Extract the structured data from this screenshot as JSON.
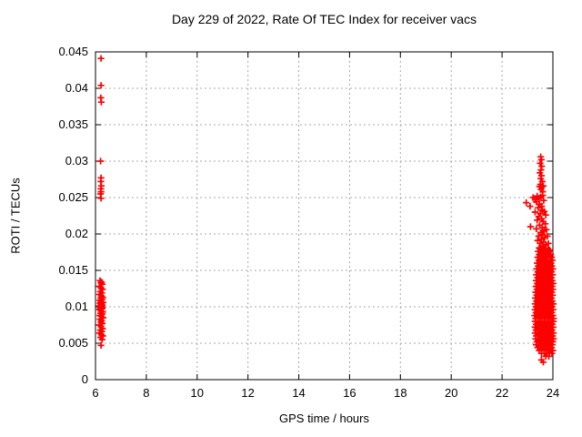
{
  "chart_data": {
    "type": "scatter",
    "title": "Day 229 of 2022, Rate Of TEC Index for receiver vacs",
    "xlabel": "GPS time / hours",
    "ylabel": "ROTI / TECUs",
    "xlim": [
      6,
      24
    ],
    "ylim": [
      0,
      0.045
    ],
    "x_ticks": [
      6,
      8,
      10,
      12,
      14,
      16,
      18,
      20,
      22,
      24
    ],
    "x_tick_labels": [
      "6",
      "8",
      "10",
      "12",
      "14",
      "16",
      "18",
      "20",
      "22",
      "24"
    ],
    "y_ticks": [
      0,
      0.005,
      0.01,
      0.015,
      0.02,
      0.025,
      0.03,
      0.035,
      0.04,
      0.045
    ],
    "y_tick_labels": [
      "0",
      "0.005",
      "0.01",
      "0.015",
      "0.02",
      "0.025",
      "0.03",
      "0.035",
      "0.04",
      "0.045"
    ],
    "grid": true,
    "legend": "none",
    "styles": {
      "marker": "plus",
      "marker_color": "#ff0000",
      "grid_color": "#a8a8a8",
      "axis_color": "#000000",
      "text_color": "#000000",
      "background": "#ffffff"
    },
    "series": [
      {
        "name": "vacs",
        "color": "#ff0000",
        "marker": "plus",
        "points": [
          [
            6.22,
            0.0441
          ],
          [
            6.22,
            0.0404
          ],
          [
            6.21,
            0.0387
          ],
          [
            6.23,
            0.0381
          ],
          [
            6.2,
            0.03
          ],
          [
            6.22,
            0.0277
          ],
          [
            6.21,
            0.0272
          ],
          [
            6.23,
            0.0266
          ],
          [
            6.21,
            0.0262
          ],
          [
            6.22,
            0.0258
          ],
          [
            6.2,
            0.0255
          ],
          [
            6.22,
            0.0249
          ],
          [
            6.18,
            0.0136
          ],
          [
            6.24,
            0.0134
          ],
          [
            6.21,
            0.0133
          ],
          [
            6.27,
            0.0131
          ],
          [
            6.15,
            0.0128
          ],
          [
            6.22,
            0.0126
          ],
          [
            6.28,
            0.0124
          ],
          [
            6.19,
            0.0121
          ],
          [
            6.25,
            0.0119
          ],
          [
            6.16,
            0.0117
          ],
          [
            6.23,
            0.0115
          ],
          [
            6.29,
            0.0113
          ],
          [
            6.2,
            0.0112
          ],
          [
            6.26,
            0.011
          ],
          [
            6.17,
            0.0109
          ],
          [
            6.22,
            0.0107
          ],
          [
            6.3,
            0.0106
          ],
          [
            6.18,
            0.0105
          ],
          [
            6.24,
            0.0104
          ],
          [
            6.21,
            0.0103
          ],
          [
            6.27,
            0.0102
          ],
          [
            6.15,
            0.0101
          ],
          [
            6.23,
            0.01
          ],
          [
            6.28,
            0.0099
          ],
          [
            6.19,
            0.0098
          ],
          [
            6.25,
            0.0097
          ],
          [
            6.16,
            0.0096
          ],
          [
            6.22,
            0.0094
          ],
          [
            6.29,
            0.0093
          ],
          [
            6.2,
            0.0091
          ],
          [
            6.26,
            0.009
          ],
          [
            6.17,
            0.0088
          ],
          [
            6.23,
            0.0087
          ],
          [
            6.3,
            0.0085
          ],
          [
            6.18,
            0.0083
          ],
          [
            6.24,
            0.0081
          ],
          [
            6.21,
            0.0079
          ],
          [
            6.27,
            0.0077
          ],
          [
            6.15,
            0.0075
          ],
          [
            6.22,
            0.0073
          ],
          [
            6.28,
            0.007
          ],
          [
            6.19,
            0.0068
          ],
          [
            6.25,
            0.0066
          ],
          [
            6.16,
            0.0064
          ],
          [
            6.23,
            0.0062
          ],
          [
            6.29,
            0.006
          ],
          [
            6.2,
            0.0058
          ],
          [
            6.26,
            0.0055
          ],
          [
            6.22,
            0.0047
          ],
          [
            23.52,
            0.0306
          ],
          [
            23.55,
            0.0302
          ],
          [
            23.5,
            0.0297
          ],
          [
            23.56,
            0.0293
          ],
          [
            23.53,
            0.0288
          ],
          [
            23.49,
            0.0284
          ],
          [
            23.55,
            0.028
          ],
          [
            23.52,
            0.0276
          ],
          [
            23.58,
            0.0272
          ],
          [
            23.51,
            0.0268
          ],
          [
            23.48,
            0.0265
          ],
          [
            23.56,
            0.0264
          ],
          [
            23.62,
            0.0266
          ],
          [
            23.53,
            0.0261
          ],
          [
            23.6,
            0.0258
          ],
          [
            22.95,
            0.0243
          ],
          [
            23.1,
            0.0238
          ],
          [
            23.12,
            0.021
          ],
          [
            23.22,
            0.025
          ],
          [
            23.3,
            0.0247
          ],
          [
            23.38,
            0.0252
          ],
          [
            23.45,
            0.0249
          ],
          [
            23.52,
            0.0251
          ],
          [
            23.6,
            0.0253
          ],
          [
            23.35,
            0.0244
          ],
          [
            23.48,
            0.0241
          ],
          [
            23.56,
            0.0238
          ],
          [
            23.64,
            0.0246
          ],
          [
            23.42,
            0.0236
          ],
          [
            23.58,
            0.0233
          ],
          [
            23.3,
            0.023
          ],
          [
            23.5,
            0.0228
          ],
          [
            23.66,
            0.0231
          ],
          [
            23.72,
            0.0226
          ],
          [
            23.44,
            0.0224
          ],
          [
            23.56,
            0.0221
          ],
          [
            23.38,
            0.0219
          ],
          [
            23.62,
            0.0217
          ],
          [
            23.7,
            0.0214
          ],
          [
            23.48,
            0.0212
          ],
          [
            23.58,
            0.0209
          ],
          [
            23.35,
            0.0207
          ],
          [
            23.66,
            0.0204
          ],
          [
            23.52,
            0.0202
          ],
          [
            23.74,
            0.0206
          ],
          [
            23.6,
            0.0199
          ],
          [
            23.44,
            0.0197
          ],
          [
            23.68,
            0.0195
          ],
          [
            23.55,
            0.0193
          ],
          [
            23.78,
            0.0197
          ],
          [
            23.4,
            0.0191
          ],
          [
            23.63,
            0.0189
          ],
          [
            23.5,
            0.0187
          ],
          [
            23.72,
            0.0185
          ],
          [
            23.58,
            0.0183
          ],
          [
            23.82,
            0.0187
          ],
          [
            23.46,
            0.0181
          ],
          [
            23.66,
            0.0179
          ],
          [
            23.54,
            0.0177
          ],
          [
            23.76,
            0.0175
          ],
          [
            23.86,
            0.0178
          ],
          [
            23.55,
            0.0027
          ],
          [
            23.62,
            0.0024
          ]
        ],
        "dense_rows": [
          {
            "y": 0.018,
            "xs": [
              23.48,
              23.56,
              23.63,
              23.71,
              23.8
            ]
          },
          {
            "y": 0.0176,
            "xs": [
              23.42,
              23.52,
              23.6,
              23.68,
              23.77,
              23.88
            ]
          },
          {
            "y": 0.0172,
            "xs": [
              23.46,
              23.55,
              23.64,
              23.73,
              23.82,
              23.92
            ]
          },
          {
            "y": 0.0168,
            "xs": [
              23.4,
              23.5,
              23.58,
              23.67,
              23.76,
              23.86,
              23.95
            ]
          },
          {
            "y": 0.0164,
            "xs": [
              23.44,
              23.53,
              23.62,
              23.7,
              23.79,
              23.89,
              23.98
            ]
          },
          {
            "y": 0.016,
            "xs": [
              23.38,
              23.48,
              23.57,
              23.66,
              23.75,
              23.84,
              23.93
            ]
          },
          {
            "y": 0.0156,
            "xs": [
              23.42,
              23.52,
              23.61,
              23.69,
              23.78,
              23.87,
              23.96
            ]
          },
          {
            "y": 0.0152,
            "xs": [
              23.36,
              23.46,
              23.55,
              23.64,
              23.73,
              23.82,
              23.91,
              24.0
            ]
          },
          {
            "y": 0.0148,
            "xs": [
              23.4,
              23.5,
              23.59,
              23.68,
              23.77,
              23.86,
              23.95
            ]
          },
          {
            "y": 0.0144,
            "xs": [
              23.35,
              23.45,
              23.54,
              23.63,
              23.72,
              23.81,
              23.9,
              23.99
            ]
          },
          {
            "y": 0.014,
            "xs": [
              23.39,
              23.49,
              23.58,
              23.67,
              23.76,
              23.85,
              23.94
            ]
          },
          {
            "y": 0.0136,
            "xs": [
              23.34,
              23.44,
              23.53,
              23.62,
              23.71,
              23.8,
              23.89,
              23.98
            ]
          },
          {
            "y": 0.0132,
            "xs": [
              23.38,
              23.48,
              23.57,
              23.66,
              23.75,
              23.84,
              23.93,
              24.01
            ]
          },
          {
            "y": 0.0128,
            "xs": [
              23.33,
              23.43,
              23.52,
              23.61,
              23.7,
              23.79,
              23.88,
              23.97
            ]
          },
          {
            "y": 0.0124,
            "xs": [
              23.37,
              23.47,
              23.56,
              23.65,
              23.74,
              23.83,
              23.92,
              24.0
            ]
          },
          {
            "y": 0.012,
            "xs": [
              23.32,
              23.42,
              23.51,
              23.6,
              23.69,
              23.78,
              23.87,
              23.96
            ]
          },
          {
            "y": 0.0116,
            "xs": [
              23.36,
              23.46,
              23.55,
              23.64,
              23.73,
              23.82,
              23.91,
              23.99
            ]
          },
          {
            "y": 0.0112,
            "xs": [
              23.31,
              23.41,
              23.5,
              23.59,
              23.68,
              23.77,
              23.86,
              23.95
            ]
          },
          {
            "y": 0.0108,
            "xs": [
              23.35,
              23.45,
              23.54,
              23.63,
              23.72,
              23.81,
              23.9,
              23.98
            ]
          },
          {
            "y": 0.0104,
            "xs": [
              23.3,
              23.4,
              23.49,
              23.58,
              23.67,
              23.76,
              23.85,
              23.94,
              24.02
            ]
          },
          {
            "y": 0.01,
            "xs": [
              23.34,
              23.44,
              23.53,
              23.62,
              23.71,
              23.8,
              23.89,
              23.97
            ]
          },
          {
            "y": 0.0096,
            "xs": [
              23.29,
              23.39,
              23.48,
              23.57,
              23.66,
              23.75,
              23.84,
              23.93,
              24.01
            ]
          },
          {
            "y": 0.0092,
            "xs": [
              23.33,
              23.43,
              23.52,
              23.61,
              23.7,
              23.79,
              23.88,
              23.96
            ]
          },
          {
            "y": 0.0088,
            "xs": [
              23.28,
              23.38,
              23.47,
              23.56,
              23.65,
              23.74,
              23.83,
              23.92,
              24.0
            ]
          },
          {
            "y": 0.0084,
            "xs": [
              23.32,
              23.42,
              23.51,
              23.6,
              23.69,
              23.78,
              23.87,
              23.95,
              24.03
            ]
          },
          {
            "y": 0.008,
            "xs": [
              23.3,
              23.4,
              23.49,
              23.58,
              23.67,
              23.76,
              23.85,
              23.94,
              24.02
            ]
          },
          {
            "y": 0.0076,
            "xs": [
              23.34,
              23.44,
              23.53,
              23.62,
              23.71,
              23.8,
              23.89,
              23.98
            ]
          },
          {
            "y": 0.0072,
            "xs": [
              23.29,
              23.39,
              23.48,
              23.57,
              23.66,
              23.75,
              23.84,
              23.93,
              24.01
            ]
          },
          {
            "y": 0.0068,
            "xs": [
              23.33,
              23.43,
              23.52,
              23.61,
              23.7,
              23.79,
              23.88,
              23.97
            ]
          },
          {
            "y": 0.0064,
            "xs": [
              23.3,
              23.4,
              23.49,
              23.58,
              23.67,
              23.76,
              23.85,
              23.94,
              24.02
            ]
          },
          {
            "y": 0.006,
            "xs": [
              23.35,
              23.45,
              23.54,
              23.63,
              23.72,
              23.81,
              23.9,
              23.99
            ]
          },
          {
            "y": 0.0056,
            "xs": [
              23.32,
              23.42,
              23.51,
              23.6,
              23.69,
              23.78,
              23.87,
              23.96,
              24.03
            ]
          },
          {
            "y": 0.0052,
            "xs": [
              23.37,
              23.47,
              23.56,
              23.65,
              23.74,
              23.83,
              23.92,
              24.0
            ]
          },
          {
            "y": 0.0048,
            "xs": [
              23.34,
              23.44,
              23.53,
              23.62,
              23.71,
              23.8,
              23.89,
              23.98
            ]
          },
          {
            "y": 0.0044,
            "xs": [
              23.4,
              23.5,
              23.59,
              23.68,
              23.77,
              23.86,
              23.95
            ]
          },
          {
            "y": 0.004,
            "xs": [
              23.46,
              23.56,
              23.65,
              23.74,
              23.83,
              23.92,
              24.0
            ]
          },
          {
            "y": 0.0036,
            "xs": [
              23.55,
              23.66,
              23.76,
              23.86,
              23.96
            ]
          },
          {
            "y": 0.0032,
            "xs": [
              23.72,
              23.84
            ]
          }
        ]
      }
    ]
  }
}
